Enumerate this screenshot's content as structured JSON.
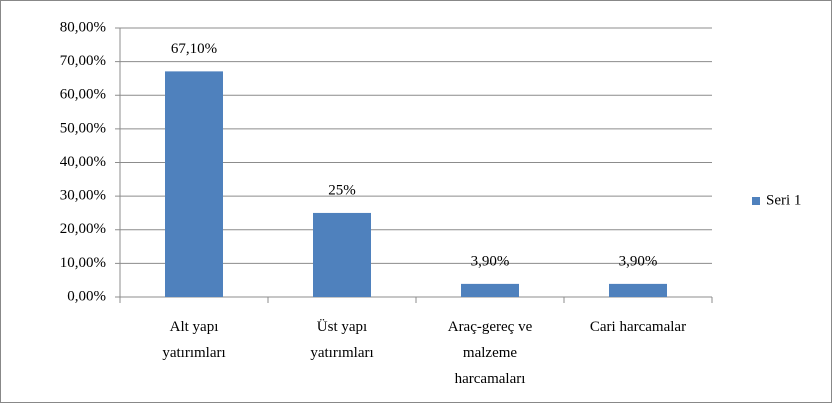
{
  "chart_data": {
    "type": "bar",
    "categories": [
      [
        "Alt yapı",
        "yatırımları"
      ],
      [
        "Üst yapı",
        "yatırımları"
      ],
      [
        "Araç-gereç ve",
        "malzeme",
        "harcamaları"
      ],
      [
        "Cari harcamalar"
      ]
    ],
    "series": [
      {
        "name": "Seri 1",
        "color": "#4f81bd",
        "values": [
          67.1,
          25,
          3.9,
          3.9
        ],
        "value_labels": [
          "67,10%",
          "25%",
          "3,90%",
          "3,90%"
        ]
      }
    ],
    "ylim": [
      0,
      80
    ],
    "yticks": [
      {
        "value": 0,
        "label": "0,00%"
      },
      {
        "value": 10,
        "label": "10,00%"
      },
      {
        "value": 20,
        "label": "20,00%"
      },
      {
        "value": 30,
        "label": "30,00%"
      },
      {
        "value": 40,
        "label": "40,00%"
      },
      {
        "value": 50,
        "label": "50,00%"
      },
      {
        "value": 60,
        "label": "60,00%"
      },
      {
        "value": 70,
        "label": "70,00%"
      },
      {
        "value": 80,
        "label": "80,00%"
      }
    ],
    "grid": true,
    "legend": "right"
  }
}
